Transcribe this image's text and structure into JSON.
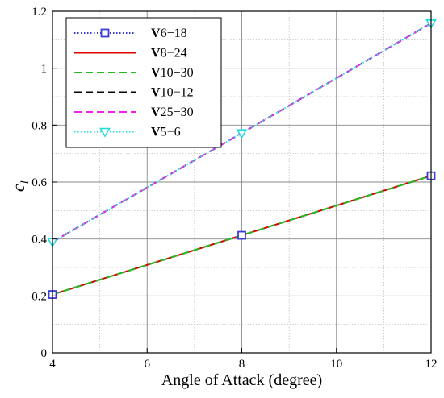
{
  "chart_data": {
    "type": "line",
    "xlabel": "Angle of Attack (degree)",
    "ylabel": {
      "main": "c",
      "sub": "l"
    },
    "xlim": [
      4,
      12
    ],
    "ylim": [
      0,
      1.2
    ],
    "x_ticks": [
      4,
      6,
      8,
      10,
      12
    ],
    "x_tick_labels": [
      "4",
      "6",
      "8",
      "10",
      "12"
    ],
    "y_ticks": [
      0,
      0.2,
      0.4,
      0.6,
      0.8,
      1,
      1.2
    ],
    "y_tick_labels": [
      "0",
      "0.2",
      "0.4",
      "0.6",
      "0.8",
      "1",
      "1.2"
    ],
    "grid": true,
    "legend_position": "top-left",
    "series": [
      {
        "name": "V6−18",
        "prefix": "V",
        "suffix": "6−18",
        "color": "#3b3bd6",
        "dash": "dotted",
        "marker": "square",
        "x": [
          4,
          8,
          12
        ],
        "y": [
          0.205,
          0.413,
          0.622
        ]
      },
      {
        "name": "V8−24",
        "prefix": "V",
        "suffix": "8−24",
        "color": "#e00000",
        "dash": "solid",
        "marker": "none",
        "x": [
          4,
          8,
          12
        ],
        "y": [
          0.205,
          0.413,
          0.622
        ]
      },
      {
        "name": "V10−30",
        "prefix": "V",
        "suffix": "10−30",
        "color": "#22bb22",
        "dash": "dashed",
        "marker": "none",
        "x": [
          4,
          8,
          12
        ],
        "y": [
          0.205,
          0.413,
          0.622
        ]
      },
      {
        "name": "V10−12",
        "prefix": "V",
        "suffix": "10−12",
        "color": "#000000",
        "dash": "dashed",
        "marker": "none",
        "x": [
          4,
          8,
          12
        ],
        "y": [
          0.39,
          0.772,
          1.158
        ]
      },
      {
        "name": "V25−30",
        "prefix": "V",
        "suffix": "25−30",
        "color": "#ee22ee",
        "dash": "dashed",
        "marker": "none",
        "x": [
          4,
          8,
          12
        ],
        "y": [
          0.39,
          0.772,
          1.158
        ]
      },
      {
        "name": "V5−6",
        "prefix": "V",
        "suffix": "5−6",
        "color": "#22dddd",
        "dash": "dotted",
        "marker": "triangle-down",
        "x": [
          4,
          8,
          12
        ],
        "y": [
          0.39,
          0.772,
          1.158
        ]
      }
    ]
  }
}
